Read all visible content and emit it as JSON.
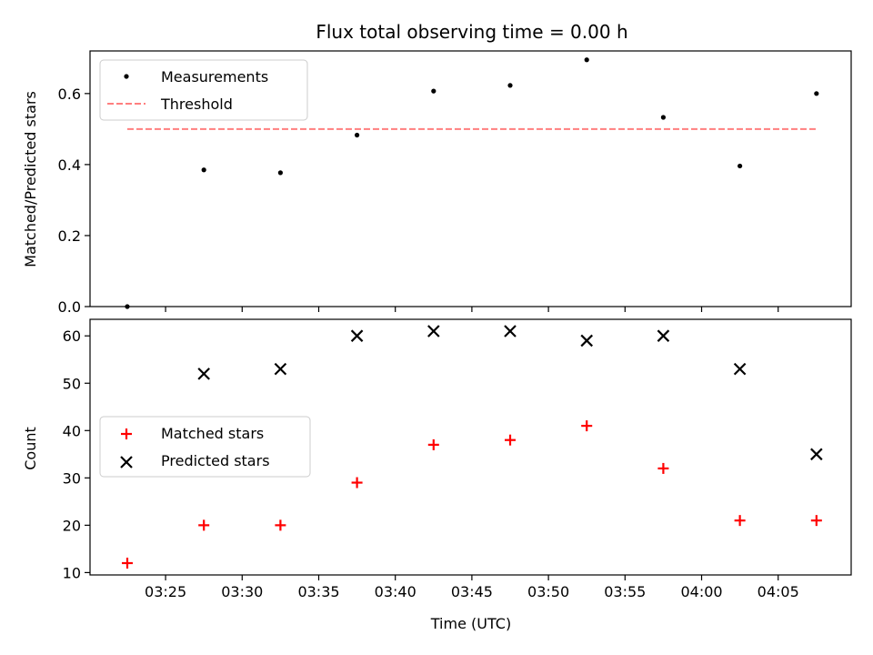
{
  "chart_data": [
    {
      "type": "scatter",
      "title": "Flux total observing time = 0.00 h",
      "xlabel": "",
      "ylabel": "Matched/Predicted stars",
      "ylim": [
        0,
        0.72
      ],
      "yticks": [
        0.0,
        0.2,
        0.4,
        0.6
      ],
      "ytick_labels": [
        "0.0",
        "0.2",
        "0.4",
        "0.6"
      ],
      "legend_position": "top-left",
      "grid": false,
      "x": [
        "03:22:30",
        "03:27:30",
        "03:32:30",
        "03:37:30",
        "03:42:30",
        "03:47:30",
        "03:52:30",
        "03:57:30",
        "04:02:30",
        "04:07:30"
      ],
      "series": [
        {
          "name": "Measurements",
          "marker": "dot",
          "color": "#000000",
          "values": [
            0.0,
            0.385,
            0.377,
            0.483,
            0.607,
            0.623,
            0.695,
            0.533,
            0.396,
            0.6
          ]
        },
        {
          "name": "Threshold",
          "marker": "dashed-line",
          "color": "#ff7f7f",
          "values": [
            0.5,
            0.5
          ]
        }
      ]
    },
    {
      "type": "scatter",
      "title": "",
      "xlabel": "Time (UTC)",
      "ylabel": "Count",
      "ylim": [
        9.5,
        63.5
      ],
      "yticks": [
        10,
        20,
        30,
        40,
        50,
        60
      ],
      "ytick_labels": [
        "10",
        "20",
        "30",
        "40",
        "50",
        "60"
      ],
      "xtick_labels": [
        "03:25",
        "03:30",
        "03:35",
        "03:40",
        "03:45",
        "03:50",
        "03:55",
        "04:00",
        "04:05"
      ],
      "xtick_times": [
        "03:25",
        "03:30",
        "03:35",
        "03:40",
        "03:45",
        "03:50",
        "03:55",
        "04:00",
        "04:05"
      ],
      "xlim": [
        "03:20:04",
        "04:09:46"
      ],
      "legend_position": "center-left",
      "grid": false,
      "x": [
        "03:22:30",
        "03:27:30",
        "03:32:30",
        "03:37:30",
        "03:42:30",
        "03:47:30",
        "03:52:30",
        "03:57:30",
        "04:02:30",
        "04:07:30"
      ],
      "series": [
        {
          "name": "Matched stars",
          "marker": "plus",
          "color": "#ff0000",
          "values": [
            12,
            20,
            20,
            29,
            37,
            38,
            41,
            32,
            21,
            21
          ]
        },
        {
          "name": "Predicted stars",
          "marker": "x",
          "color": "#000000",
          "values": [
            null,
            52,
            53,
            60,
            61,
            61,
            59,
            60,
            53,
            35
          ]
        }
      ]
    }
  ]
}
